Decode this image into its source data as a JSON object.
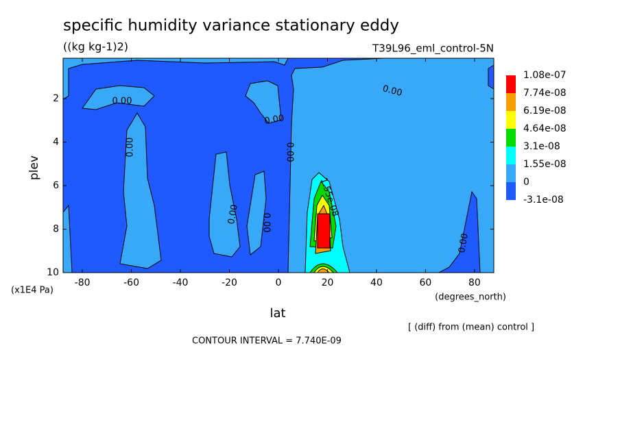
{
  "chart_data": {
    "type": "contour",
    "title": "specific humidity variance stationary eddy",
    "subtitle": "((kg kg-1)2)",
    "run_label": "T39L96_eml_control-5N",
    "xlabel": "lat",
    "xunit": "(degrees_north)",
    "ylabel": "plev",
    "yunit": "(x1E4 Pa)",
    "xlim": [
      -87.86,
      87.86
    ],
    "ylim": [
      10,
      0.14
    ],
    "xticks": [
      -80,
      -60,
      -40,
      -20,
      0,
      20,
      40,
      60,
      80
    ],
    "yticks": [
      2,
      4,
      6,
      8,
      10
    ],
    "levels": [
      {
        "value": -3.1e-08,
        "label": "-3.1e-08"
      },
      0,
      {
        "value": 1.55e-08,
        "label": "1.55e-08"
      },
      {
        "value": 3.1e-08,
        "label": "3.1e-08"
      },
      {
        "value": 4.64e-08,
        "label": "4.64e-08"
      },
      {
        "value": 6.19e-08,
        "label": "6.19e-08"
      },
      {
        "value": 7.74e-08,
        "label": "7.74e-08"
      },
      {
        "value": 1.08e-07,
        "label": "1.08e-07"
      }
    ],
    "colors": [
      "#1e5aff",
      "#38a8f8",
      "#00ffff",
      "#00dc00",
      "#ffff00",
      "#f5a000",
      "#ff0000"
    ],
    "contour_labels": [
      {
        "value": 0,
        "label": "0.00"
      },
      {
        "value": 0,
        "label": "0.00"
      },
      {
        "value": 0,
        "label": "0.00"
      },
      {
        "value": 0,
        "label": "0.00"
      },
      {
        "value": 0,
        "label": "0.00"
      },
      {
        "value": 0,
        "label": "0.00"
      },
      {
        "value": 0,
        "label": "0.00"
      },
      {
        "value": 0,
        "label": "0.00"
      },
      {
        "value": 1.55e-08,
        "label": "1.55e-08"
      }
    ],
    "note": "[ (diff) from (mean) control ]",
    "contour_interval": "CONTOUR INTERVAL = 7.740E-09"
  }
}
